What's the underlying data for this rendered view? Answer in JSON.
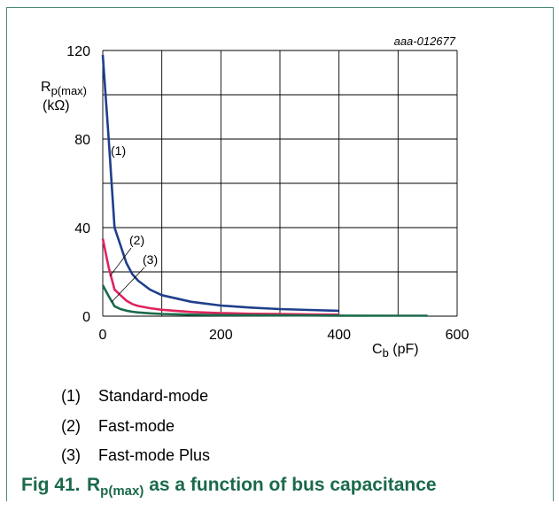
{
  "figure": {
    "id": "aaa-012677",
    "caption_label": "Fig 41.",
    "caption_symbol_main": "R",
    "caption_symbol_sub": "p(max)",
    "caption_text": "as a function of bus capacitance"
  },
  "chart_data": {
    "type": "line",
    "ylabel_main": "R",
    "ylabel_sub": "p(max)",
    "ylabel_unit": "(kΩ)",
    "xlabel_main": "C",
    "xlabel_sub": "b",
    "xlabel_unit": "(pF)",
    "xlim": [
      0,
      600
    ],
    "ylim": [
      0,
      120
    ],
    "x_ticks": [
      0,
      200,
      400,
      600
    ],
    "y_ticks": [
      0,
      40,
      80,
      120
    ],
    "x_gridlines": [
      0,
      100,
      200,
      300,
      400,
      500,
      600
    ],
    "y_gridlines": [
      0,
      20,
      40,
      60,
      80,
      100,
      120
    ],
    "grid": true,
    "series": [
      {
        "name": "(1)",
        "color": "#1f3f8c",
        "x": [
          0,
          10,
          20,
          30,
          40,
          50,
          60,
          80,
          100,
          150,
          200,
          250,
          300,
          350,
          400
        ],
        "y": [
          118,
          80,
          40,
          32,
          24,
          19,
          16,
          12,
          9.5,
          6.5,
          4.8,
          3.9,
          3.2,
          2.8,
          2.4
        ]
      },
      {
        "name": "(2)",
        "color": "#e0245e",
        "x": [
          0,
          10,
          20,
          30,
          40,
          50,
          60,
          80,
          100,
          150,
          200,
          250,
          300,
          350,
          400
        ],
        "y": [
          35,
          22,
          12,
          9.5,
          7,
          5.5,
          4.6,
          3.6,
          2.9,
          1.9,
          1.4,
          1.1,
          0.95,
          0.8,
          0.7
        ]
      },
      {
        "name": "(3)",
        "color": "#1a6a4a",
        "x": [
          0,
          10,
          20,
          30,
          40,
          50,
          60,
          80,
          100,
          150,
          200,
          300,
          400,
          500,
          550
        ],
        "y": [
          14,
          9,
          4.5,
          3.2,
          2.5,
          2,
          1.7,
          1.3,
          1.0,
          0.7,
          0.5,
          0.35,
          0.25,
          0.2,
          0.2
        ]
      }
    ],
    "curve_labels": [
      "(1)",
      "(2)",
      "(3)"
    ]
  },
  "legend": [
    {
      "num": "(1)",
      "text": "Standard-mode"
    },
    {
      "num": "(2)",
      "text": "Fast-mode"
    },
    {
      "num": "(3)",
      "text": "Fast-mode Plus"
    }
  ]
}
